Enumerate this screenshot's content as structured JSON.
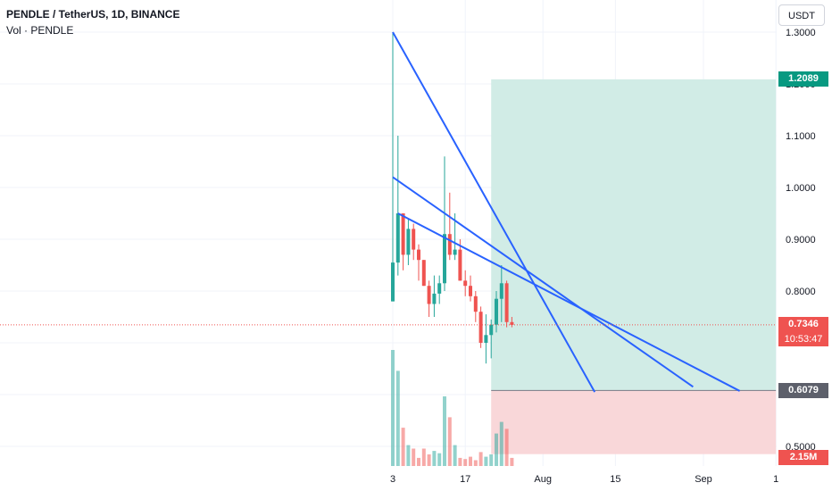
{
  "header": {
    "title": "PENDLE / TetherUS, 1D, BINANCE",
    "volume_label": "Vol · PENDLE"
  },
  "currency_button": "USDT",
  "price_badges": {
    "target": "1.2089",
    "current": "0.7346",
    "countdown": "10:53:47",
    "stop": "0.6079",
    "volume": "2.15M"
  },
  "colors": {
    "up": "#26a69a",
    "down": "#ef5350",
    "trendline": "#2962ff",
    "profit_zone": "#d1ece6",
    "loss_zone": "#f9d7d9",
    "grid": "#f0f3fa",
    "axis_text": "#131722"
  },
  "chart_data": {
    "type": "candlestick",
    "y_axis": {
      "ticks": [
        0.5,
        0.6,
        0.7,
        0.8,
        0.9,
        1.0,
        1.1,
        1.2,
        1.3
      ],
      "tick_labels": [
        "0.5000",
        "0.6000",
        "0.7000",
        "0.8000",
        "0.9000",
        "1.0000",
        "1.1000",
        "1.2000",
        "1.3000"
      ],
      "range": [
        0.48,
        1.305
      ]
    },
    "x_axis": {
      "tick_labels": [
        "3",
        "17",
        "Aug",
        "15",
        "Sep",
        "1"
      ],
      "tick_days": [
        0,
        14,
        29,
        43,
        60,
        74
      ]
    },
    "start_day": 3,
    "candles": [
      {
        "o": 0.78,
        "h": 1.3,
        "l": 0.78,
        "c": 0.855
      },
      {
        "o": 0.855,
        "h": 1.1,
        "l": 0.83,
        "c": 0.95
      },
      {
        "o": 0.95,
        "h": 0.95,
        "l": 0.84,
        "c": 0.87
      },
      {
        "o": 0.87,
        "h": 0.94,
        "l": 0.85,
        "c": 0.92
      },
      {
        "o": 0.92,
        "h": 0.93,
        "l": 0.86,
        "c": 0.88
      },
      {
        "o": 0.88,
        "h": 0.89,
        "l": 0.82,
        "c": 0.86
      },
      {
        "o": 0.86,
        "h": 0.86,
        "l": 0.81,
        "c": 0.81
      },
      {
        "o": 0.81,
        "h": 0.82,
        "l": 0.75,
        "c": 0.775
      },
      {
        "o": 0.775,
        "h": 0.83,
        "l": 0.75,
        "c": 0.795
      },
      {
        "o": 0.795,
        "h": 0.83,
        "l": 0.775,
        "c": 0.815
      },
      {
        "o": 0.815,
        "h": 1.06,
        "l": 0.8,
        "c": 0.91
      },
      {
        "o": 0.91,
        "h": 0.99,
        "l": 0.86,
        "c": 0.87
      },
      {
        "o": 0.87,
        "h": 0.95,
        "l": 0.86,
        "c": 0.88
      },
      {
        "o": 0.88,
        "h": 0.9,
        "l": 0.82,
        "c": 0.82
      },
      {
        "o": 0.82,
        "h": 0.84,
        "l": 0.79,
        "c": 0.81
      },
      {
        "o": 0.81,
        "h": 0.83,
        "l": 0.78,
        "c": 0.79
      },
      {
        "o": 0.79,
        "h": 0.8,
        "l": 0.74,
        "c": 0.76
      },
      {
        "o": 0.76,
        "h": 0.77,
        "l": 0.69,
        "c": 0.7
      },
      {
        "o": 0.7,
        "h": 0.755,
        "l": 0.66,
        "c": 0.715
      },
      {
        "o": 0.715,
        "h": 0.745,
        "l": 0.67,
        "c": 0.735
      },
      {
        "o": 0.735,
        "h": 0.8,
        "l": 0.72,
        "c": 0.785
      },
      {
        "o": 0.785,
        "h": 0.85,
        "l": 0.74,
        "c": 0.815
      },
      {
        "o": 0.815,
        "h": 0.82,
        "l": 0.73,
        "c": 0.74
      },
      {
        "o": 0.74,
        "h": 0.75,
        "l": 0.73,
        "c": 0.7346
      }
    ],
    "volume": {
      "max_label": "2.15M",
      "values": [
        1.0,
        0.82,
        0.33,
        0.18,
        0.15,
        0.07,
        0.15,
        0.1,
        0.13,
        0.11,
        0.6,
        0.42,
        0.18,
        0.07,
        0.06,
        0.08,
        0.05,
        0.12,
        0.08,
        0.1,
        0.28,
        0.38,
        0.32,
        0.07
      ]
    },
    "trendlines": [
      {
        "start": {
          "day": 0,
          "price": 1.3
        },
        "end": {
          "day": 39,
          "price": 0.605
        }
      },
      {
        "start": {
          "day": 0,
          "price": 1.02
        },
        "end": {
          "day": 58,
          "price": 0.615
        }
      },
      {
        "start": {
          "day": 1,
          "price": 0.95
        },
        "end": {
          "day": 67,
          "price": 0.607
        }
      }
    ],
    "position": {
      "start_day": 19,
      "end_day": 74,
      "entry": 0.6079,
      "target": 1.2089,
      "stop_label_price": 0.5,
      "stop_bottom": 0.485
    },
    "current_price": 0.7346
  }
}
